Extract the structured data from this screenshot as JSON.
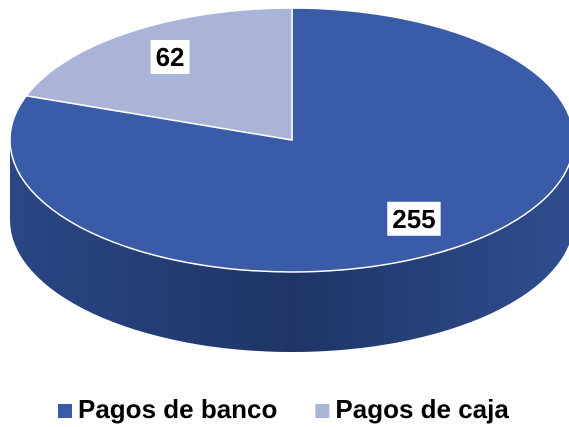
{
  "chart_data": {
    "type": "pie",
    "categories": [
      "Pagos de banco",
      "Pagos de caja"
    ],
    "values": [
      255,
      62
    ],
    "colors": [
      "#3a5ca8",
      "#a9b4d8"
    ],
    "legend": "bottom"
  }
}
